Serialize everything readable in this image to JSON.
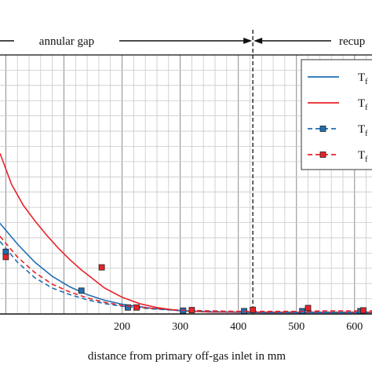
{
  "chart_data": {
    "type": "line",
    "xlabel": "distance from primary  off-gas inlet in mm",
    "ylabel": "",
    "xlim": [
      -10,
      630
    ],
    "ylim": [
      0,
      1
    ],
    "x_ticks": [
      200,
      300,
      400,
      500,
      600
    ],
    "x_tick_labels": [
      "200",
      "300",
      "400",
      "500",
      "600"
    ],
    "grid": true,
    "regions": [
      {
        "label": "annular gap",
        "x_end": 425
      },
      {
        "label": "recup",
        "x_start": 425
      }
    ],
    "boundary_x": 425,
    "legend_position": "top-right",
    "series": [
      {
        "name": "T",
        "name_suffix": "f",
        "style": "solid",
        "color": "#1f6fb4",
        "x": [
          -10,
          20,
          50,
          80,
          110,
          140,
          170,
          200,
          250,
          300,
          350,
          400,
          450,
          500,
          550,
          600,
          630
        ],
        "y": [
          0.35,
          0.27,
          0.2,
          0.145,
          0.105,
          0.075,
          0.053,
          0.038,
          0.022,
          0.013,
          0.008,
          0.006,
          0.005,
          0.005,
          0.005,
          0.005,
          0.005
        ]
      },
      {
        "name": "T",
        "name_suffix": "f",
        "style": "solid",
        "color": "#e8232a",
        "x": [
          -10,
          10,
          30,
          50,
          70,
          90,
          110,
          130,
          150,
          170,
          200,
          230,
          260,
          300,
          350,
          400,
          450,
          500,
          550,
          600,
          630
        ],
        "y": [
          0.62,
          0.5,
          0.42,
          0.36,
          0.305,
          0.255,
          0.21,
          0.17,
          0.135,
          0.1,
          0.065,
          0.04,
          0.025,
          0.012,
          0.008,
          0.007,
          0.007,
          0.007,
          0.007,
          0.007,
          0.007
        ]
      },
      {
        "name": "T",
        "name_suffix": "f",
        "style": "dashed",
        "color": "#1f6fb4",
        "marker": "square",
        "x": [
          -10,
          20,
          50,
          80,
          110,
          140,
          170,
          200,
          250,
          300,
          350,
          400,
          450,
          500,
          550,
          600,
          630
        ],
        "y": [
          0.28,
          0.2,
          0.14,
          0.1,
          0.075,
          0.055,
          0.04,
          0.03,
          0.02,
          0.013,
          0.01,
          0.008,
          0.007,
          0.007,
          0.007,
          0.007,
          0.007
        ],
        "marker_x": [
          0,
          130,
          210,
          305,
          410,
          510,
          610
        ],
        "marker_y": [
          0.24,
          0.09,
          0.025,
          0.013,
          0.011,
          0.011,
          0.011
        ]
      },
      {
        "name": "T",
        "name_suffix": "f",
        "style": "dashed",
        "color": "#e8232a",
        "marker": "square",
        "x": [
          -10,
          20,
          50,
          80,
          110,
          140,
          170,
          200,
          250,
          300,
          350,
          400,
          450,
          500,
          550,
          600,
          630
        ],
        "y": [
          0.3,
          0.22,
          0.16,
          0.115,
          0.085,
          0.062,
          0.045,
          0.033,
          0.022,
          0.015,
          0.012,
          0.01,
          0.01,
          0.01,
          0.012,
          0.012,
          0.012
        ],
        "marker_x": [
          0,
          165,
          225,
          320,
          425,
          520,
          615
        ],
        "marker_y": [
          0.22,
          0.18,
          0.025,
          0.015,
          0.016,
          0.023,
          0.014
        ]
      }
    ]
  }
}
